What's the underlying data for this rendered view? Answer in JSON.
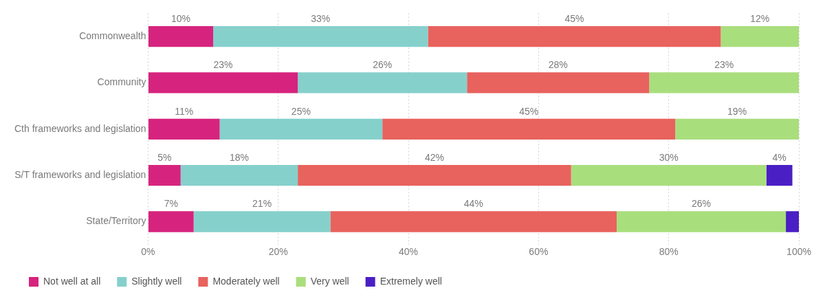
{
  "chart_data": {
    "type": "bar",
    "orientation": "horizontal",
    "stacked": true,
    "categories": [
      "Commonwealth",
      "Community",
      "Cth frameworks and legislation",
      "S/T frameworks and legislation",
      "State/Territory"
    ],
    "series": [
      {
        "name": "Not well at all",
        "color": "#d6247e",
        "values": [
          10,
          23,
          11,
          5,
          7
        ],
        "value_labels": [
          "10%",
          "23%",
          "11%",
          "5%",
          "7%"
        ]
      },
      {
        "name": "Slightly well",
        "color": "#86d0cc",
        "values": [
          33,
          26,
          25,
          18,
          21
        ],
        "value_labels": [
          "33%",
          "26%",
          "25%",
          "18%",
          "21%"
        ]
      },
      {
        "name": "Moderately well",
        "color": "#e8625e",
        "values": [
          45,
          28,
          45,
          42,
          44
        ],
        "value_labels": [
          "45%",
          "28%",
          "45%",
          "42%",
          "44%"
        ]
      },
      {
        "name": "Very well",
        "color": "#a9de7d",
        "values": [
          12,
          23,
          19,
          30,
          26
        ],
        "value_labels": [
          "12%",
          "23%",
          "19%",
          "30%",
          "26%"
        ]
      },
      {
        "name": "Extremely well",
        "color": "#4a1fc4",
        "values": [
          null,
          null,
          null,
          4,
          2
        ],
        "value_labels": [
          null,
          null,
          null,
          "4%",
          null
        ]
      }
    ],
    "xlim": [
      0,
      100
    ],
    "xticks": [
      {
        "value": 0,
        "label": "0%"
      },
      {
        "value": 20,
        "label": "20%"
      },
      {
        "value": 40,
        "label": "40%"
      },
      {
        "value": 60,
        "label": "60%"
      },
      {
        "value": 80,
        "label": "80%"
      },
      {
        "value": 100,
        "label": "100%"
      }
    ],
    "grid": "x",
    "legend": "bottom left"
  }
}
